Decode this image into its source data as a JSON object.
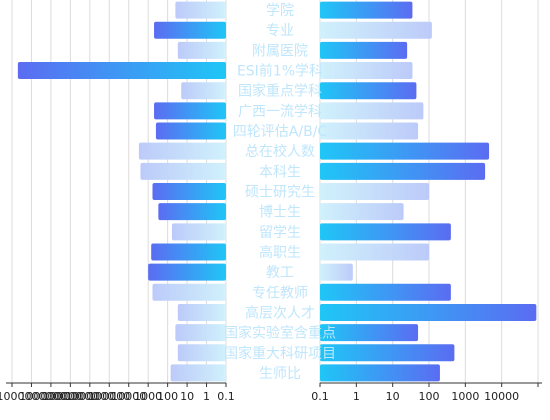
{
  "chart_data": {
    "type": "bar",
    "orientation": "horizontal",
    "layout": "butterfly",
    "categories": [
      "学院",
      "专业",
      "附属医院",
      "ESI前1%学科",
      "国家重点学科",
      "广西一流学科",
      "四轮评估A/B/C",
      "总在校人数",
      "本科生",
      "硕士研究生",
      "博士生",
      "留学生",
      "高职生",
      "教工",
      "专任教师",
      "高层次人才",
      "国家实验室含重点",
      "国家重大科研项目",
      "生师比"
    ],
    "series": [
      {
        "side": "left",
        "scale": "log",
        "xlim": [
          0.1,
          10000000000.0
        ],
        "values": [
          40,
          500,
          30,
          5000000000.0,
          20,
          500,
          400,
          3000,
          2500,
          600,
          300,
          60,
          700,
          1000,
          600,
          30,
          40,
          30,
          70
        ],
        "emphasis": [
          "light",
          "dark",
          "light",
          "dark",
          "light",
          "dark",
          "dark",
          "light",
          "light",
          "dark",
          "dark",
          "light",
          "dark",
          "dark",
          "light",
          "light",
          "light",
          "light",
          "light"
        ]
      },
      {
        "side": "right",
        "scale": "log",
        "xlim": [
          0.1,
          100000
        ],
        "values": [
          35,
          120,
          25,
          35,
          45,
          70,
          50,
          4500,
          3500,
          100,
          20,
          400,
          100,
          0.8,
          400,
          90000,
          50,
          500,
          200
        ],
        "emphasis": [
          "dark",
          "light",
          "dark",
          "light",
          "dark",
          "light",
          "light",
          "dark",
          "dark",
          "light",
          "light",
          "dark",
          "light",
          "light",
          "dark",
          "dark",
          "dark",
          "dark",
          "dark"
        ]
      }
    ],
    "left_tick_labels": [
      "1000000000",
      "100000000",
      "10000000",
      "1000000",
      "100000",
      "10000",
      "1000",
      "100",
      "10",
      "1",
      "0.1"
    ],
    "right_tick_labels": [
      "0.1",
      "1",
      "10",
      "100",
      "1000",
      "10000"
    ],
    "grid": true,
    "colors": {
      "dark_start": "#1fc6f6",
      "dark_end": "#5b6cf2",
      "light_start": "#d0f1fc",
      "light_end": "#bccaf9",
      "label": "#bfe6fb",
      "grid": "#dcdcdc",
      "axis": "#333333"
    }
  }
}
